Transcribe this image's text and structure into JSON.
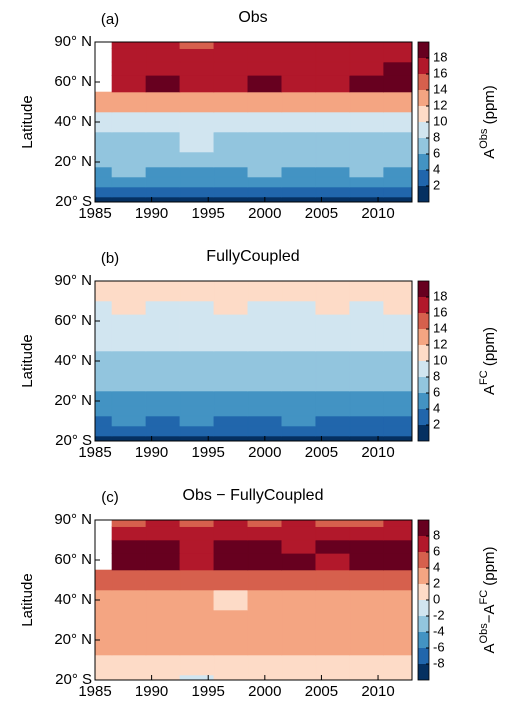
{
  "chart_data": [
    {
      "type": "contour",
      "panel": "(a)",
      "title": "Obs",
      "ylabel": "Latitude",
      "colorbar_label": [
        {
          "text": "A",
          "sup": false
        },
        {
          "text": "Obs",
          "sup": true
        },
        {
          "text": " (ppm)",
          "sup": false
        }
      ],
      "x": [
        1985,
        1988,
        1991,
        1994,
        1997,
        2000,
        2003,
        2006,
        2009,
        2012
      ],
      "y": [
        -20,
        -10,
        0,
        10,
        20,
        30,
        40,
        50,
        60,
        70,
        80,
        90
      ],
      "z": [
        [
          1,
          1.5,
          1,
          1.8,
          1,
          1.5,
          1,
          1.8,
          1,
          1.5
        ],
        [
          3,
          2.5,
          3,
          3,
          2.5,
          3,
          3,
          2.5,
          3,
          3
        ],
        [
          4.5,
          4,
          4.5,
          5,
          4,
          4.5,
          4.5,
          4,
          5,
          4.5
        ],
        [
          5.5,
          6,
          5,
          5.5,
          5.5,
          6,
          5.5,
          5,
          6,
          5.5
        ],
        [
          6.5,
          7,
          6.5,
          6.5,
          7,
          7,
          6.5,
          6.5,
          7,
          6.5
        ],
        [
          7.5,
          7,
          7.5,
          8,
          7.5,
          7.5,
          7.5,
          7.5,
          7.5,
          7.5
        ],
        [
          9,
          8.5,
          9,
          9,
          8.5,
          9,
          9,
          9,
          9,
          9
        ],
        [
          12,
          13,
          12,
          12,
          13,
          12,
          12,
          13,
          12,
          12
        ],
        [
          null,
          17,
          18.5,
          16,
          17,
          18,
          17,
          16,
          18,
          18.5
        ],
        [
          null,
          17,
          17,
          16,
          17,
          17,
          16,
          17,
          17,
          18.5
        ],
        [
          null,
          16,
          17,
          16,
          17,
          16,
          17,
          16,
          16,
          17
        ],
        [
          null,
          16,
          17,
          15,
          17,
          16,
          17,
          16,
          16,
          17
        ]
      ],
      "levels": [
        2,
        4,
        6,
        8,
        10,
        12,
        14,
        16,
        18
      ],
      "colors": [
        "#053061",
        "#2166ac",
        "#4393c3",
        "#92c5de",
        "#d1e5f0",
        "#fddbc7",
        "#f4a582",
        "#d6604d",
        "#b2182b",
        "#67001f"
      ],
      "xlim": [
        1985,
        2013
      ],
      "xticks": [
        1985,
        1990,
        1995,
        2000,
        2005,
        2010
      ],
      "ylim": [
        -20,
        90
      ],
      "yticks": [
        {
          "value": -20,
          "label": "20° S"
        },
        {
          "value": 20,
          "label": "20° N"
        },
        {
          "value": 40,
          "label": "40° N"
        },
        {
          "value": 60,
          "label": "60° N"
        },
        {
          "value": 90,
          "label": "90° N"
        }
      ]
    },
    {
      "type": "contour",
      "panel": "(b)",
      "title": "FullyCoupled",
      "ylabel": "Latitude",
      "colorbar_label": [
        {
          "text": "A",
          "sup": false
        },
        {
          "text": "FC",
          "sup": true
        },
        {
          "text": " (ppm)",
          "sup": false
        }
      ],
      "x": [
        1985,
        1988,
        1991,
        1994,
        1997,
        2000,
        2003,
        2006,
        2009,
        2012
      ],
      "y": [
        -20,
        -10,
        0,
        10,
        20,
        30,
        40,
        50,
        60,
        70,
        80,
        90
      ],
      "z": [
        [
          1,
          1.5,
          1,
          1,
          1.5,
          1,
          1,
          1.5,
          1,
          1
        ],
        [
          2.5,
          3,
          2.5,
          2.5,
          3,
          2.5,
          2.5,
          3,
          2.5,
          2.5
        ],
        [
          3.5,
          4,
          3.5,
          4,
          3.5,
          3.5,
          4,
          3.5,
          3.5,
          3.5
        ],
        [
          4.5,
          5,
          4.5,
          4.5,
          5,
          4.5,
          4.5,
          5,
          4.5,
          5
        ],
        [
          5.5,
          5,
          5.5,
          5,
          5.5,
          5.5,
          5,
          5.5,
          5,
          5.5
        ],
        [
          6,
          6.5,
          6,
          6,
          6.5,
          6,
          6.5,
          6,
          6,
          6.5
        ],
        [
          7,
          7.5,
          7,
          7,
          7.5,
          7,
          7.5,
          7,
          7,
          7.5
        ],
        [
          8,
          8.5,
          8,
          8.5,
          8,
          8,
          8.5,
          8,
          8,
          8.5
        ],
        [
          9,
          9.5,
          9,
          9.5,
          9,
          9,
          9.5,
          9,
          9,
          9.5
        ],
        [
          9.5,
          10,
          9.5,
          9.5,
          10,
          9.5,
          9.5,
          10,
          9.5,
          10
        ],
        [
          10,
          10.5,
          10,
          10,
          10.5,
          10,
          10,
          10.5,
          10,
          10.5
        ],
        [
          10.5,
          10,
          10.5,
          10.5,
          10,
          10.5,
          10.5,
          10,
          10.5,
          10
        ]
      ],
      "levels": [
        2,
        4,
        6,
        8,
        10,
        12,
        14,
        16,
        18
      ],
      "colors": [
        "#053061",
        "#2166ac",
        "#4393c3",
        "#92c5de",
        "#d1e5f0",
        "#fddbc7",
        "#f4a582",
        "#d6604d",
        "#b2182b",
        "#67001f"
      ],
      "xlim": [
        1985,
        2013
      ],
      "xticks": [
        1985,
        1990,
        1995,
        2000,
        2005,
        2010
      ],
      "ylim": [
        -20,
        90
      ],
      "yticks": [
        {
          "value": -20,
          "label": "20° S"
        },
        {
          "value": 20,
          "label": "20° N"
        },
        {
          "value": 40,
          "label": "40° N"
        },
        {
          "value": 60,
          "label": "60° N"
        },
        {
          "value": 90,
          "label": "90° N"
        }
      ]
    },
    {
      "type": "contour",
      "panel": "(c)",
      "title": "Obs − FullyCoupled",
      "ylabel": "Latitude",
      "colorbar_label": [
        {
          "text": "A",
          "sup": false
        },
        {
          "text": "Obs",
          "sup": true
        },
        {
          "text": "−A",
          "sup": false
        },
        {
          "text": "FC",
          "sup": true
        },
        {
          "text": " (ppm)",
          "sup": false
        }
      ],
      "x": [
        1985,
        1988,
        1991,
        1994,
        1997,
        2000,
        2003,
        2006,
        2009,
        2012
      ],
      "y": [
        -20,
        -10,
        0,
        10,
        20,
        30,
        40,
        50,
        60,
        70,
        80,
        90
      ],
      "z": [
        [
          0.5,
          1,
          0.5,
          -0.5,
          0.5,
          1,
          0.5,
          0.5,
          0.5,
          0.5
        ],
        [
          1,
          1,
          1,
          1,
          1,
          0.5,
          1,
          1,
          1,
          1
        ],
        [
          1.5,
          1,
          1.5,
          1,
          0.5,
          1.5,
          1,
          1,
          1.5,
          1.5
        ],
        [
          2,
          2.5,
          2,
          3,
          2,
          2,
          2,
          2,
          2,
          2
        ],
        [
          2.5,
          2.5,
          3,
          2.5,
          2.5,
          3,
          2.5,
          2.5,
          3,
          2.5
        ],
        [
          2.5,
          3,
          2.5,
          3,
          2.5,
          2.5,
          2.5,
          2.5,
          3,
          2.5
        ],
        [
          2.5,
          2.5,
          2.5,
          2.5,
          1.5,
          2.5,
          2.5,
          2.5,
          2.5,
          2.5
        ],
        [
          4,
          5,
          5,
          4,
          5,
          4,
          5,
          5,
          4,
          5
        ],
        [
          null,
          9,
          9,
          7,
          8,
          9,
          8,
          7,
          8,
          9
        ],
        [
          null,
          8,
          8,
          7,
          8,
          8,
          7,
          8,
          8,
          9
        ],
        [
          null,
          6,
          7,
          6,
          7,
          6,
          7,
          6,
          6,
          7
        ],
        [
          null,
          5,
          6,
          5,
          6,
          5,
          6,
          5,
          5,
          6
        ]
      ],
      "levels": [
        -8,
        -6,
        -4,
        -2,
        0,
        2,
        4,
        6,
        8
      ],
      "colors": [
        "#053061",
        "#2166ac",
        "#4393c3",
        "#92c5de",
        "#d1e5f0",
        "#fddbc7",
        "#f4a582",
        "#d6604d",
        "#b2182b",
        "#67001f"
      ],
      "xlim": [
        1985,
        2013
      ],
      "xticks": [
        1985,
        1990,
        1995,
        2000,
        2005,
        2010
      ],
      "ylim": [
        -20,
        90
      ],
      "yticks": [
        {
          "value": -20,
          "label": "20° S"
        },
        {
          "value": 20,
          "label": "20° N"
        },
        {
          "value": 40,
          "label": "40° N"
        },
        {
          "value": 60,
          "label": "60° N"
        },
        {
          "value": 90,
          "label": "90° N"
        }
      ]
    }
  ]
}
